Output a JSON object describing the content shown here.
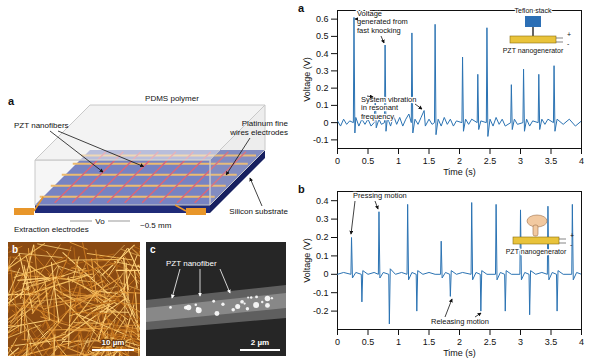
{
  "chart_data": [
    {
      "type": "line",
      "title": "a",
      "xlabel": "Time (s)",
      "ylabel": "Voltage (V)",
      "color": "#2b73b3",
      "xlim": [
        0,
        4
      ],
      "xticks": [
        0,
        0.5,
        1,
        1.5,
        2,
        2.5,
        3,
        3.5,
        4
      ],
      "ylim": [
        -0.15,
        0.65
      ],
      "yticks": [
        -0.1,
        0,
        0.1,
        0.2,
        0.3,
        0.4,
        0.5,
        0.6
      ],
      "x": [
        0,
        0.05,
        0.1,
        0.15,
        0.2,
        0.26,
        0.27,
        0.285,
        0.3,
        0.35,
        0.4,
        0.45,
        0.5,
        0.55,
        0.6,
        0.62,
        0.635,
        0.68,
        0.72,
        0.77,
        0.78,
        0.795,
        0.82,
        0.87,
        0.92,
        0.97,
        1.02,
        1.07,
        1.12,
        1.17,
        1.21,
        1.22,
        1.235,
        1.27,
        1.32,
        1.37,
        1.42,
        1.44,
        1.5,
        1.55,
        1.59,
        1.6,
        1.615,
        1.65,
        1.7,
        1.75,
        1.8,
        1.85,
        1.9,
        1.95,
        2.04,
        2.05,
        2.065,
        2.1,
        2.15,
        2.2,
        2.29,
        2.3,
        2.315,
        2.35,
        2.44,
        2.45,
        2.465,
        2.5,
        2.55,
        2.6,
        2.65,
        2.7,
        2.75,
        2.84,
        2.85,
        2.865,
        2.9,
        2.95,
        3.04,
        3.05,
        3.065,
        3.1,
        3.15,
        3.2,
        3.29,
        3.3,
        3.315,
        3.35,
        3.4,
        3.45,
        3.54,
        3.55,
        3.565,
        3.6,
        3.7,
        3.8,
        3.9,
        4
      ],
      "values": [
        0.01,
        -0.02,
        0.02,
        -0.01,
        0.01,
        0,
        0.61,
        -0.06,
        0.03,
        -0.02,
        0.02,
        -0.01,
        0.02,
        -0.02,
        0,
        0.15,
        -0.03,
        0.02,
        -0.01,
        0,
        0.45,
        -0.05,
        0.03,
        -0.02,
        0.04,
        -0.01,
        0.03,
        -0.02,
        0.02,
        0.05,
        0,
        0.52,
        -0.06,
        0.02,
        -0.01,
        0.03,
        0.07,
        -0.02,
        0.02,
        -0.01,
        0,
        0.57,
        -0.07,
        0.02,
        -0.02,
        0.03,
        -0.01,
        0.02,
        -0.02,
        0.01,
        0,
        0.38,
        -0.05,
        0.02,
        -0.01,
        0.02,
        0,
        0.28,
        -0.04,
        0.01,
        0,
        0.55,
        -0.08,
        0.02,
        -0.02,
        0.03,
        -0.01,
        0.02,
        -0.02,
        0,
        0.22,
        -0.04,
        0.02,
        -0.01,
        0,
        0.31,
        -0.05,
        0.02,
        -0.02,
        0.01,
        0,
        0.28,
        -0.04,
        0.02,
        -0.01,
        0.02,
        0,
        0.33,
        -0.05,
        0.02,
        -0.01,
        0.02,
        -0.02,
        0.01
      ],
      "annotations": [
        "Voltage generated from fast knocking",
        "System vibration in resonant frequency"
      ],
      "inset_labels": [
        "Teflon stack",
        "PZT nanogenerator",
        "+",
        "-"
      ]
    },
    {
      "type": "line",
      "title": "b",
      "xlabel": "Time (s)",
      "ylabel": "Voltage (V)",
      "color": "#2b73b3",
      "xlim": [
        0,
        4
      ],
      "xticks": [
        0,
        0.5,
        1,
        1.5,
        2,
        2.5,
        3,
        3.5,
        4
      ],
      "ylim": [
        -0.3,
        0.45
      ],
      "yticks": [
        -0.2,
        -0.1,
        0,
        0.1,
        0.2,
        0.3,
        0.4
      ],
      "x": [
        0,
        0.1,
        0.22,
        0.23,
        0.245,
        0.3,
        0.39,
        0.4,
        0.415,
        0.5,
        0.6,
        0.67,
        0.68,
        0.695,
        0.75,
        0.84,
        0.85,
        0.865,
        0.95,
        1.05,
        1.14,
        1.15,
        1.165,
        1.22,
        1.29,
        1.3,
        1.315,
        1.4,
        1.5,
        1.6,
        1.69,
        1.7,
        1.715,
        1.77,
        1.84,
        1.85,
        1.865,
        1.95,
        2.05,
        2.19,
        2.2,
        2.215,
        2.27,
        2.34,
        2.35,
        2.365,
        2.45,
        2.59,
        2.6,
        2.615,
        2.67,
        2.74,
        2.75,
        2.765,
        2.85,
        2.99,
        3.0,
        3.015,
        3.07,
        3.14,
        3.15,
        3.165,
        3.25,
        3.35,
        3.44,
        3.45,
        3.465,
        3.52,
        3.59,
        3.6,
        3.615,
        3.7,
        3.84,
        3.85,
        3.865,
        3.92,
        4
      ],
      "values": [
        0,
        0.01,
        0,
        0.2,
        -0.02,
        0.01,
        0,
        -0.15,
        0.02,
        0,
        0.01,
        0,
        0.34,
        -0.02,
        0.01,
        0,
        -0.27,
        0.03,
        0,
        0.01,
        0,
        0.38,
        -0.03,
        0.01,
        0,
        -0.2,
        0.02,
        0,
        0.01,
        0,
        0,
        0.18,
        -0.02,
        0.01,
        0,
        -0.12,
        0.02,
        0,
        0.01,
        0,
        0.39,
        -0.03,
        0.01,
        0,
        -0.2,
        0.02,
        0,
        0,
        0.38,
        -0.03,
        0.01,
        0,
        -0.2,
        0.02,
        0,
        0,
        0.35,
        -0.03,
        0.01,
        0,
        -0.22,
        0.02,
        0,
        0.01,
        0,
        0.37,
        -0.03,
        0.01,
        0,
        -0.2,
        0.02,
        0,
        0,
        0.38,
        -0.03,
        0.01,
        0
      ],
      "annotations": [
        "Pressing motion",
        "Releasing motion"
      ],
      "inset_labels": [
        "PZT nanogenerator",
        "+",
        "-"
      ]
    }
  ],
  "diagram": {
    "label": "a",
    "parts": [
      "PDMS polymer",
      "PZT nanofibers",
      "Platinum fine wires electrodes",
      "Silicon substrate",
      "Extraction electrodes"
    ],
    "dimension": "~0.5 mm",
    "output": "Vo"
  },
  "images": [
    {
      "label": "b",
      "scale_bar": "10 µm"
    },
    {
      "label": "c",
      "annotation": "PZT nanofiber",
      "scale_bar": "2 µm"
    }
  ]
}
